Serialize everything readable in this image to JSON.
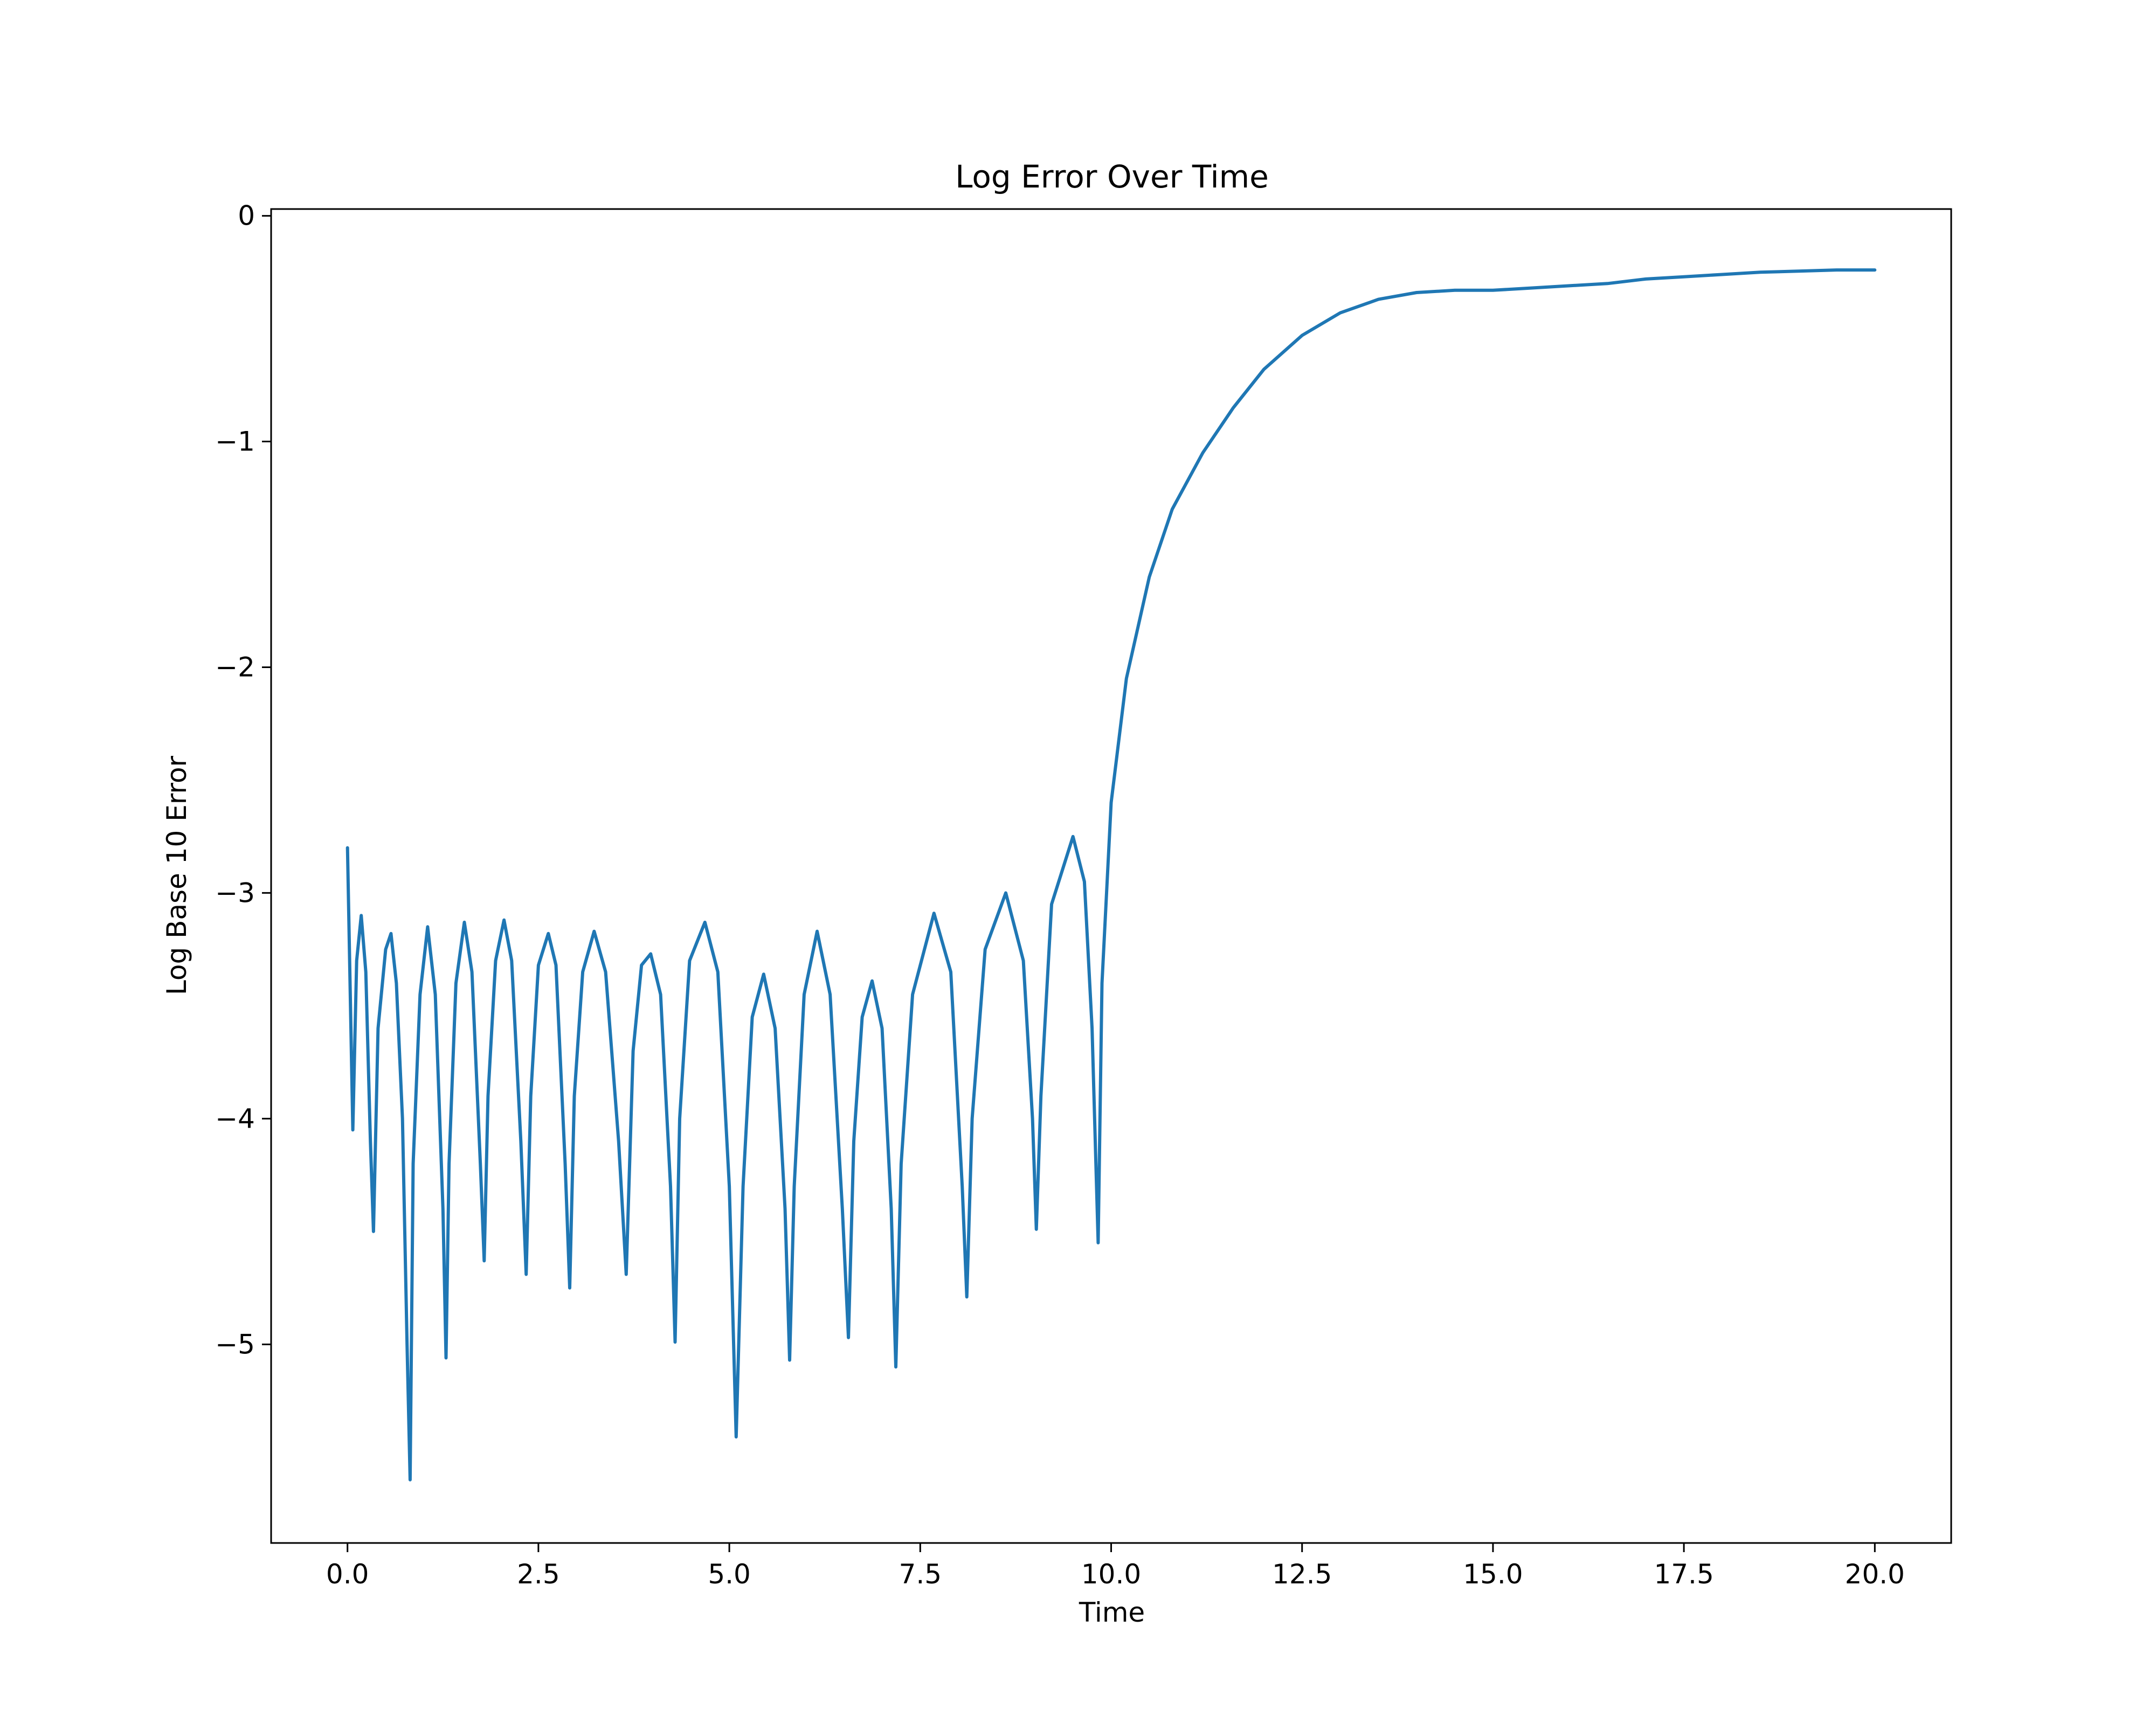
{
  "chart_data": {
    "type": "line",
    "title": "Log Error Over Time",
    "xlabel": "Time",
    "ylabel": "Log Base 10 Error",
    "xlim": [
      -1.0,
      21.0
    ],
    "ylim": [
      -5.88,
      0.03
    ],
    "x_ticks": [
      0.0,
      2.5,
      5.0,
      7.5,
      10.0,
      12.5,
      15.0,
      17.5,
      20.0
    ],
    "x_tick_labels": [
      "0.0",
      "2.5",
      "5.0",
      "7.5",
      "10.0",
      "12.5",
      "15.0",
      "17.5",
      "20.0"
    ],
    "y_ticks": [
      0,
      -1,
      -2,
      -3,
      -4,
      -5
    ],
    "y_tick_labels": [
      "0",
      "−1",
      "−2",
      "−3",
      "−4",
      "−5"
    ],
    "grid": false,
    "legend": "none",
    "series": [
      {
        "color": "#1f77b4",
        "x": [
          0.0,
          0.07,
          0.12,
          0.18,
          0.24,
          0.3,
          0.34,
          0.4,
          0.5,
          0.57,
          0.64,
          0.72,
          0.78,
          0.82,
          0.86,
          0.95,
          1.05,
          1.15,
          1.25,
          1.29,
          1.33,
          1.42,
          1.53,
          1.63,
          1.74,
          1.79,
          1.84,
          1.94,
          2.05,
          2.15,
          2.27,
          2.34,
          2.4,
          2.5,
          2.63,
          2.73,
          2.85,
          2.91,
          2.97,
          3.08,
          3.23,
          3.38,
          3.55,
          3.65,
          3.74,
          3.85,
          3.97,
          4.1,
          4.23,
          4.29,
          4.35,
          4.48,
          4.68,
          4.85,
          5.0,
          5.09,
          5.18,
          5.3,
          5.45,
          5.6,
          5.73,
          5.79,
          5.85,
          5.98,
          6.15,
          6.32,
          6.48,
          6.56,
          6.63,
          6.74,
          6.87,
          7.0,
          7.12,
          7.18,
          7.25,
          7.4,
          7.68,
          7.9,
          8.05,
          8.11,
          8.18,
          8.35,
          8.62,
          8.85,
          8.97,
          9.02,
          9.08,
          9.22,
          9.5,
          9.65,
          9.75,
          9.8,
          9.83,
          9.88,
          10.0,
          10.2,
          10.5,
          10.8,
          11.2,
          11.6,
          12.0,
          12.5,
          13.0,
          13.5,
          14.0,
          14.5,
          15.0,
          15.5,
          16.0,
          16.5,
          17.0,
          17.5,
          18.0,
          18.5,
          19.0,
          19.5,
          20.0
        ],
        "y": [
          -2.8,
          -4.05,
          -3.3,
          -3.1,
          -3.35,
          -4.1,
          -4.5,
          -3.6,
          -3.25,
          -3.18,
          -3.4,
          -4.0,
          -5.0,
          -5.6,
          -4.2,
          -3.45,
          -3.15,
          -3.45,
          -4.4,
          -5.06,
          -4.2,
          -3.4,
          -3.13,
          -3.35,
          -4.2,
          -4.63,
          -3.9,
          -3.3,
          -3.12,
          -3.3,
          -4.1,
          -4.69,
          -3.9,
          -3.32,
          -3.18,
          -3.32,
          -4.2,
          -4.75,
          -3.9,
          -3.35,
          -3.17,
          -3.35,
          -4.1,
          -4.69,
          -3.7,
          -3.32,
          -3.27,
          -3.45,
          -4.3,
          -4.99,
          -4.0,
          -3.3,
          -3.13,
          -3.35,
          -4.3,
          -5.41,
          -4.3,
          -3.55,
          -3.36,
          -3.6,
          -4.4,
          -5.07,
          -4.3,
          -3.45,
          -3.17,
          -3.45,
          -4.4,
          -4.97,
          -4.1,
          -3.55,
          -3.39,
          -3.6,
          -4.4,
          -5.1,
          -4.2,
          -3.45,
          -3.09,
          -3.35,
          -4.3,
          -4.79,
          -4.0,
          -3.25,
          -3.0,
          -3.3,
          -4.0,
          -4.49,
          -3.9,
          -3.05,
          -2.75,
          -2.95,
          -3.6,
          -4.2,
          -4.55,
          -3.4,
          -2.6,
          -2.05,
          -1.6,
          -1.3,
          -1.05,
          -0.85,
          -0.68,
          -0.53,
          -0.43,
          -0.37,
          -0.34,
          -0.33,
          -0.33,
          -0.32,
          -0.31,
          -0.3,
          -0.28,
          -0.27,
          -0.26,
          -0.25,
          -0.245,
          -0.24,
          -0.24
        ]
      }
    ]
  }
}
